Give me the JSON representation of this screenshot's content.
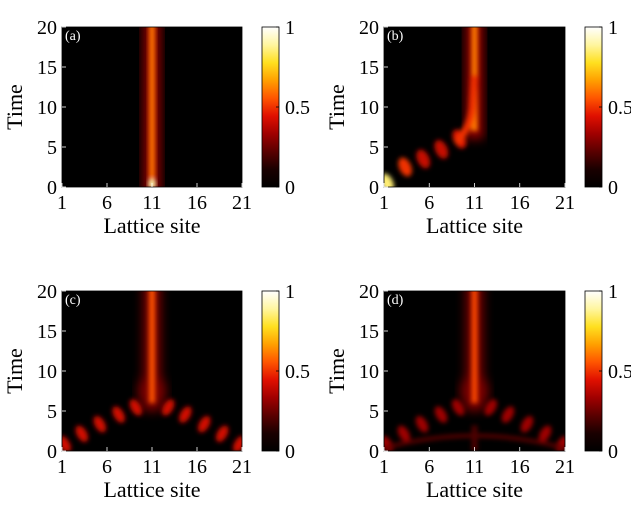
{
  "colorscale": [
    "#000000",
    "#1a0000",
    "#5a0000",
    "#a00000",
    "#e01000",
    "#ff5500",
    "#ffa000",
    "#ffe020",
    "#fff6a0",
    "#ffffff"
  ],
  "chart_data": [
    {
      "type": "heatmap",
      "panel_label": "(a)",
      "xlabel": "Lattice site",
      "ylabel": "Time",
      "xlim": [
        1,
        21
      ],
      "ylim": [
        0,
        20
      ],
      "xticks": [
        1,
        6,
        11,
        16,
        21
      ],
      "yticks": [
        0,
        5,
        10,
        15,
        20
      ],
      "colorbar": {
        "range": [
          0,
          1
        ],
        "ticks": [
          0,
          0.5,
          1
        ]
      },
      "pattern": "single channel at site 11",
      "ridge": [
        {
          "time": 0,
          "site": 11,
          "intensity": 0.9
        },
        {
          "time": 5,
          "site": 11,
          "intensity": 0.55
        },
        {
          "time": 10,
          "site": 11,
          "intensity": 0.55
        },
        {
          "time": 15,
          "site": 11,
          "intensity": 0.55
        },
        {
          "time": 20,
          "site": 11,
          "intensity": 0.55
        }
      ]
    },
    {
      "type": "heatmap",
      "panel_label": "(b)",
      "xlabel": "Lattice site",
      "ylabel": "Time",
      "xlim": [
        1,
        21
      ],
      "ylim": [
        0,
        20
      ],
      "xticks": [
        1,
        6,
        11,
        16,
        21
      ],
      "yticks": [
        0,
        5,
        10,
        15,
        20
      ],
      "colorbar": {
        "range": [
          0,
          1
        ],
        "ticks": [
          0,
          0.5,
          1
        ]
      },
      "pattern": "excitation from site 1 hopping toward site 11",
      "ridge": [
        {
          "time": 0,
          "site": 1,
          "intensity": 0.85
        },
        {
          "time": 2,
          "site": 3,
          "intensity": 0.5
        },
        {
          "time": 3,
          "site": 5,
          "intensity": 0.4
        },
        {
          "time": 4.2,
          "site": 7,
          "intensity": 0.4
        },
        {
          "time": 5.5,
          "site": 9,
          "intensity": 0.45
        },
        {
          "time": 7,
          "site": 10.3,
          "intensity": 0.5
        },
        {
          "time": 10,
          "site": 10.8,
          "intensity": 0.55
        },
        {
          "time": 15,
          "site": 11,
          "intensity": 0.6
        },
        {
          "time": 20,
          "site": 11,
          "intensity": 0.6
        }
      ]
    },
    {
      "type": "heatmap",
      "panel_label": "(c)",
      "xlabel": "Lattice site",
      "ylabel": "Time",
      "xlim": [
        1,
        21
      ],
      "ylim": [
        0,
        20
      ],
      "xticks": [
        1,
        6,
        11,
        16,
        21
      ],
      "yticks": [
        0,
        5,
        10,
        15,
        20
      ],
      "colorbar": {
        "range": [
          0,
          1
        ],
        "ticks": [
          0,
          0.5,
          1
        ]
      },
      "pattern": "excitations from sites 1 and 21 converging at site 11",
      "ridge": [
        {
          "time": 0,
          "site": 1,
          "intensity": 0.45
        },
        {
          "time": 0,
          "site": 21,
          "intensity": 0.45
        },
        {
          "time": 6,
          "site": 11,
          "intensity": 0.4
        },
        {
          "time": 10,
          "site": 11,
          "intensity": 0.5
        },
        {
          "time": 20,
          "site": 11,
          "intensity": 0.6
        }
      ]
    },
    {
      "type": "heatmap",
      "panel_label": "(d)",
      "xlabel": "Lattice site",
      "ylabel": "Time",
      "xlim": [
        1,
        21
      ],
      "ylim": [
        0,
        20
      ],
      "xticks": [
        1,
        6,
        11,
        16,
        21
      ],
      "yticks": [
        0,
        5,
        10,
        15,
        20
      ],
      "colorbar": {
        "range": [
          0,
          1
        ],
        "ticks": [
          0,
          0.5,
          1
        ]
      },
      "pattern": "excitations from sites 1 and 21 converging at site 11 with weak interference arc",
      "ridge": [
        {
          "time": 0,
          "site": 1,
          "intensity": 0.3
        },
        {
          "time": 0,
          "site": 21,
          "intensity": 0.3
        },
        {
          "time": 6,
          "site": 11,
          "intensity": 0.35
        },
        {
          "time": 10,
          "site": 11,
          "intensity": 0.5
        },
        {
          "time": 20,
          "site": 11,
          "intensity": 0.6
        }
      ]
    }
  ]
}
